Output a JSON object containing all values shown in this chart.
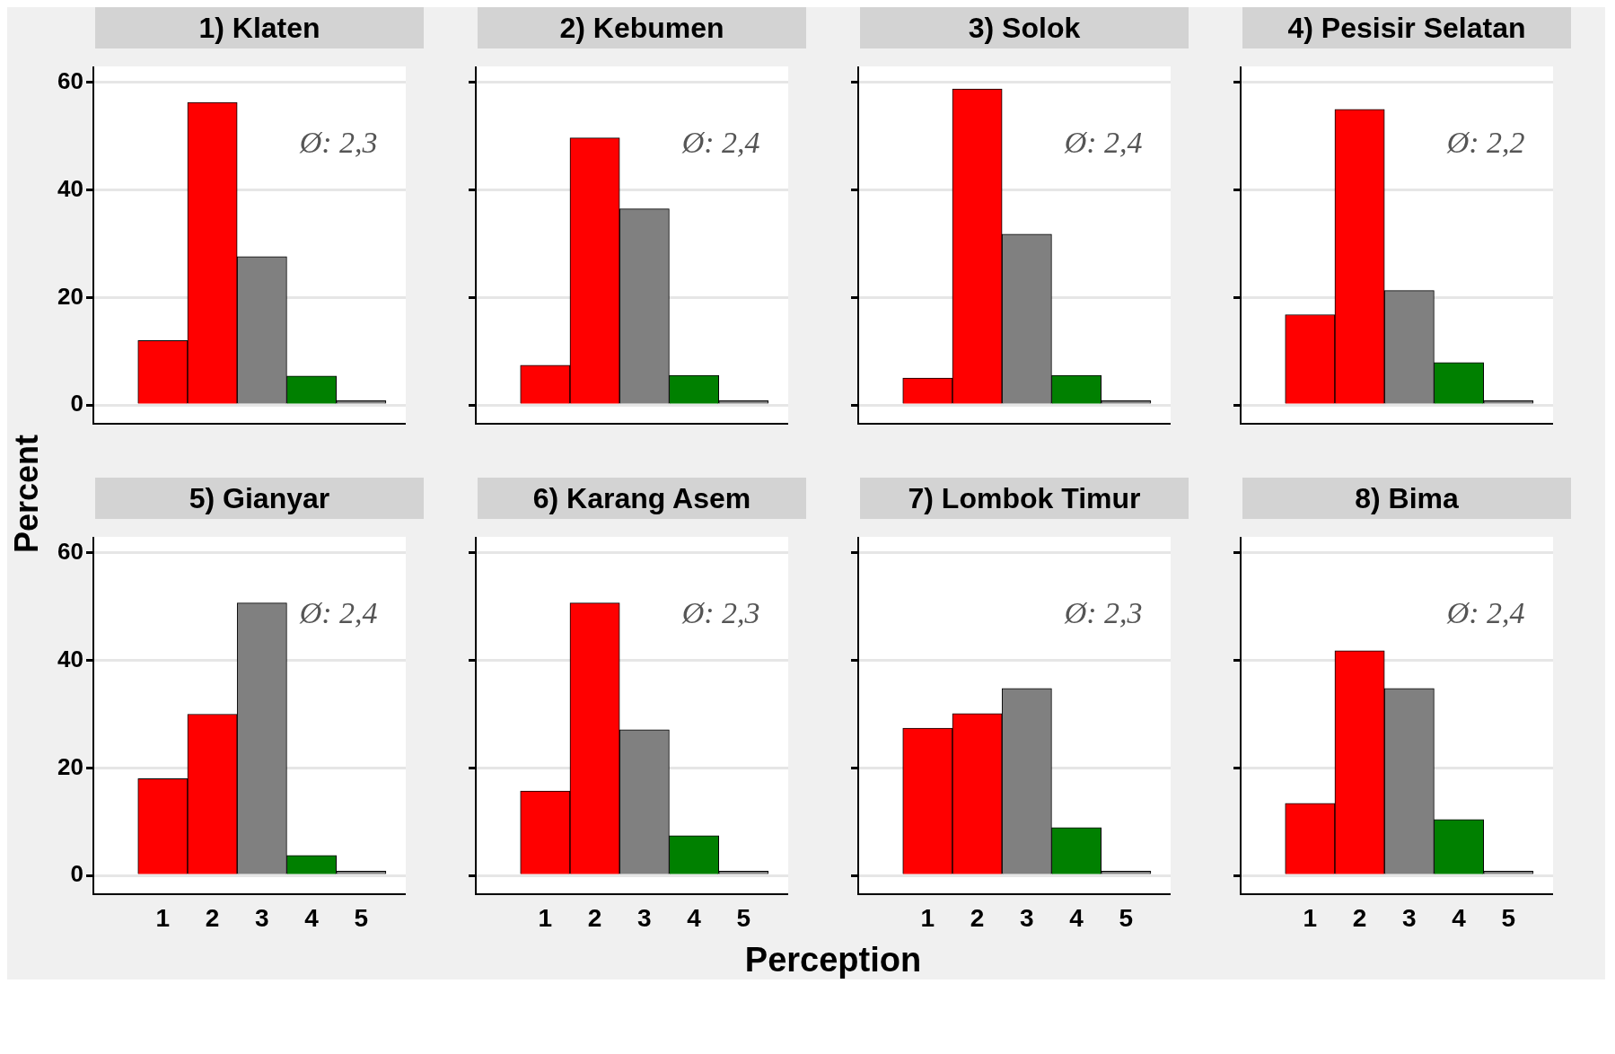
{
  "chart_data": [
    {
      "type": "histogram",
      "title": "1) Klaten",
      "ylabel": "Percent",
      "bins": [
        0.5,
        1.5,
        2.5,
        3.5,
        4.5,
        5.5
      ],
      "values": [
        12,
        56.3,
        27.6,
        5.4,
        0.8
      ],
      "colors": [
        "#ff0000",
        "#ff0000",
        "#808080",
        "#008000",
        "#808080"
      ],
      "xlim": [
        -0.4,
        5.9
      ],
      "ylim": [
        -3.5,
        63
      ],
      "xticks": [
        1,
        2,
        3,
        4,
        5
      ],
      "yticks": [
        0,
        20,
        40,
        60
      ],
      "grid": "y",
      "tick_labels": "y",
      "annotations": [
        "Ø: 2,3"
      ]
    },
    {
      "type": "histogram",
      "title": "2) Kebumen",
      "bins": [
        0.5,
        1.5,
        2.5,
        3.5,
        4.5,
        5.5
      ],
      "values": [
        7.4,
        49.7,
        36.5,
        5.5,
        0.8
      ],
      "colors": [
        "#ff0000",
        "#ff0000",
        "#808080",
        "#008000",
        "#808080"
      ],
      "xlim": [
        -0.4,
        5.9
      ],
      "ylim": [
        -3.5,
        63
      ],
      "xticks": [
        1,
        2,
        3,
        4,
        5
      ],
      "yticks": [
        0,
        20,
        40,
        60
      ],
      "grid": "y",
      "tick_labels": false,
      "annotations": [
        "Ø: 2,4"
      ]
    },
    {
      "type": "histogram",
      "title": "3) Solok",
      "bins": [
        0.5,
        1.5,
        2.5,
        3.5,
        4.5,
        5.5
      ],
      "values": [
        5,
        58.8,
        31.8,
        5.5,
        0.8
      ],
      "colors": [
        "#ff0000",
        "#ff0000",
        "#808080",
        "#008000",
        "#808080"
      ],
      "xlim": [
        -0.4,
        5.9
      ],
      "ylim": [
        -3.5,
        63
      ],
      "xticks": [
        1,
        2,
        3,
        4,
        5
      ],
      "yticks": [
        0,
        20,
        40,
        60
      ],
      "grid": "y",
      "tick_labels": false,
      "annotations": [
        "Ø: 2,4"
      ]
    },
    {
      "type": "histogram",
      "title": "4) Pesisir Selatan",
      "bins": [
        0.5,
        1.5,
        2.5,
        3.5,
        4.5,
        5.5
      ],
      "values": [
        16.8,
        55,
        21.3,
        7.9,
        0.8
      ],
      "colors": [
        "#ff0000",
        "#ff0000",
        "#808080",
        "#008000",
        "#808080"
      ],
      "xlim": [
        -0.4,
        5.9
      ],
      "ylim": [
        -3.5,
        63
      ],
      "xticks": [
        1,
        2,
        3,
        4,
        5
      ],
      "yticks": [
        0,
        20,
        40,
        60
      ],
      "grid": "y",
      "tick_labels": false,
      "annotations": [
        "Ø: 2,2"
      ]
    },
    {
      "type": "histogram",
      "title": "5) Gianyar",
      "bins": [
        0.5,
        1.5,
        2.5,
        3.5,
        4.5,
        5.5
      ],
      "values": [
        18,
        30,
        50.7,
        3.7,
        0.8
      ],
      "colors": [
        "#ff0000",
        "#ff0000",
        "#808080",
        "#008000",
        "#808080"
      ],
      "xlim": [
        -0.4,
        5.9
      ],
      "ylim": [
        -3.5,
        63
      ],
      "xticks": [
        1,
        2,
        3,
        4,
        5
      ],
      "yticks": [
        0,
        20,
        40,
        60
      ],
      "grid": "y",
      "annotations": [
        "Ø: 2,4"
      ]
    },
    {
      "type": "histogram",
      "title": "6) Karang Asem",
      "xlabel": "Perception",
      "bins": [
        0.5,
        1.5,
        2.5,
        3.5,
        4.5,
        5.5
      ],
      "values": [
        15.7,
        50.7,
        27.1,
        7.4,
        0.8
      ],
      "colors": [
        "#ff0000",
        "#ff0000",
        "#808080",
        "#008000",
        "#808080"
      ],
      "xlim": [
        -0.4,
        5.9
      ],
      "ylim": [
        -3.5,
        63
      ],
      "xticks": [
        1,
        2,
        3,
        4,
        5
      ],
      "yticks": [
        0,
        20,
        40,
        60
      ],
      "grid": "y",
      "tick_labels": "x",
      "annotations": [
        "Ø: 2,3"
      ]
    },
    {
      "type": "histogram",
      "title": "7) Lombok Timur",
      "bins": [
        0.5,
        1.5,
        2.5,
        3.5,
        4.5,
        5.5
      ],
      "values": [
        27.4,
        30.1,
        34.8,
        8.9,
        0.8
      ],
      "colors": [
        "#ff0000",
        "#ff0000",
        "#808080",
        "#008000",
        "#808080"
      ],
      "xlim": [
        -0.4,
        5.9
      ],
      "ylim": [
        -3.5,
        63
      ],
      "xticks": [
        1,
        2,
        3,
        4,
        5
      ],
      "yticks": [
        0,
        20,
        40,
        60
      ],
      "grid": "y",
      "tick_labels": "x",
      "annotations": [
        "Ø: 2,3"
      ]
    },
    {
      "type": "histogram",
      "title": "8) Bima",
      "bins": [
        0.5,
        1.5,
        2.5,
        3.5,
        4.5,
        5.5
      ],
      "values": [
        13.4,
        41.8,
        34.8,
        10.4,
        0.8
      ],
      "colors": [
        "#ff0000",
        "#ff0000",
        "#808080",
        "#008000",
        "#808080"
      ],
      "xlim": [
        -0.4,
        5.9
      ],
      "ylim": [
        -3.5,
        63
      ],
      "xticks": [
        1,
        2,
        3,
        4,
        5
      ],
      "yticks": [
        0,
        20,
        40,
        60
      ],
      "grid": "y",
      "tick_labels": "x",
      "annotations": [
        "Ø: 2,4"
      ]
    }
  ]
}
